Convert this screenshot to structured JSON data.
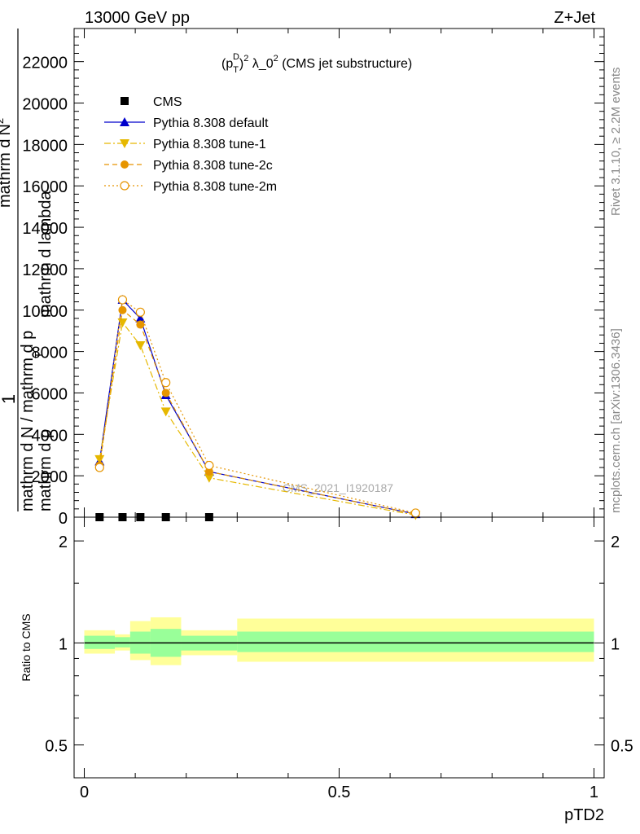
{
  "header": {
    "left": "13000 GeV pp",
    "right": "Z+Jet"
  },
  "plot_title_parts": {
    "open": "(p",
    "sup": "D",
    "sub": "T",
    "close": ")",
    "sup2": "2",
    "rest": " λ_0",
    "sup3": "2",
    "tail": " (CMS jet substructure)"
  },
  "side_labels": {
    "rivet": "Rivet 3.1.10, ≥ 2.2M events",
    "mcplots": "mcplots.cern.ch [arXiv:1306.3436]"
  },
  "watermark": "CMS_2021_I1920187",
  "y_axis_label_parts": {
    "one": "1",
    "top_den": "mathrm d",
    "top_num": "mathrm d",
    "n_frac": "N",
    "frac_sup": "2",
    "line1": "mathrm d N / mathrm d p",
    "sub_t": "T",
    "line2": "mathrm d p",
    "line3": "mathrm d lambda"
  },
  "ratio_ylabel": "Ratio to CMS",
  "xlabel": "pTD2",
  "colors": {
    "default": "#0000cc",
    "tune1": "#e6b800",
    "tune2c": "#e69500",
    "tune2m": "#e69500",
    "band_inner": "#99ff99",
    "band_outer": "#ffff99"
  },
  "legend": [
    {
      "label": "CMS",
      "marker": "square"
    },
    {
      "label": "Pythia 8.308 default",
      "marker": "triangle-up"
    },
    {
      "label": "Pythia 8.308 tune-1",
      "marker": "triangle-down"
    },
    {
      "label": "Pythia 8.308 tune-2c",
      "marker": "circle-filled"
    },
    {
      "label": "Pythia 8.308 tune-2m",
      "marker": "circle-open"
    }
  ],
  "chart_data": [
    {
      "type": "line",
      "panel": "main",
      "xlim": [
        -0.02,
        1.02
      ],
      "ylim": [
        0,
        23600
      ],
      "yticks": [
        0,
        2000,
        4000,
        6000,
        8000,
        10000,
        12000,
        14000,
        16000,
        18000,
        20000,
        22000
      ],
      "ytick_labels": [
        "0",
        "2000",
        "4000",
        "6000",
        "8000",
        "10000",
        "12000",
        "14000",
        "16000",
        "18000",
        "20000",
        "22000"
      ],
      "x": [
        0.03,
        0.075,
        0.11,
        0.16,
        0.245,
        0.65
      ],
      "series": [
        {
          "name": "CMS",
          "values": [
            0,
            0,
            0,
            0,
            0,
            0
          ]
        },
        {
          "name": "Pythia 8.308 default",
          "values": [
            2700,
            10500,
            9600,
            5900,
            2200,
            150
          ]
        },
        {
          "name": "Pythia 8.308 tune-1",
          "values": [
            2800,
            9400,
            8300,
            5100,
            1900,
            100
          ]
        },
        {
          "name": "Pythia 8.308 tune-2c",
          "values": [
            2500,
            10000,
            9300,
            6000,
            2200,
            150
          ]
        },
        {
          "name": "Pythia 8.308 tune-2m",
          "values": [
            2400,
            10500,
            9900,
            6500,
            2500,
            200
          ]
        }
      ]
    },
    {
      "type": "area",
      "panel": "ratio",
      "xlim": [
        -0.02,
        1.02
      ],
      "ylim": [
        0.4,
        2.35
      ],
      "yscale": "log",
      "yticks": [
        0.5,
        1,
        2
      ],
      "ytick_labels": [
        "0.5",
        "1",
        "2"
      ],
      "xticks": [
        0,
        0.5,
        1
      ],
      "xtick_labels": [
        "0",
        "0.5",
        "1"
      ],
      "bins": [
        {
          "x0": 0.0,
          "x1": 0.06,
          "inner": [
            0.96,
            1.05
          ],
          "outer": [
            0.93,
            1.09
          ]
        },
        {
          "x0": 0.06,
          "x1": 0.09,
          "inner": [
            0.97,
            1.04
          ],
          "outer": [
            0.95,
            1.06
          ]
        },
        {
          "x0": 0.09,
          "x1": 0.13,
          "inner": [
            0.93,
            1.08
          ],
          "outer": [
            0.89,
            1.16
          ]
        },
        {
          "x0": 0.13,
          "x1": 0.19,
          "inner": [
            0.91,
            1.1
          ],
          "outer": [
            0.86,
            1.19
          ]
        },
        {
          "x0": 0.19,
          "x1": 0.3,
          "inner": [
            0.95,
            1.05
          ],
          "outer": [
            0.92,
            1.09
          ]
        },
        {
          "x0": 0.3,
          "x1": 1.0,
          "inner": [
            0.94,
            1.08
          ],
          "outer": [
            0.88,
            1.18
          ]
        }
      ]
    }
  ]
}
